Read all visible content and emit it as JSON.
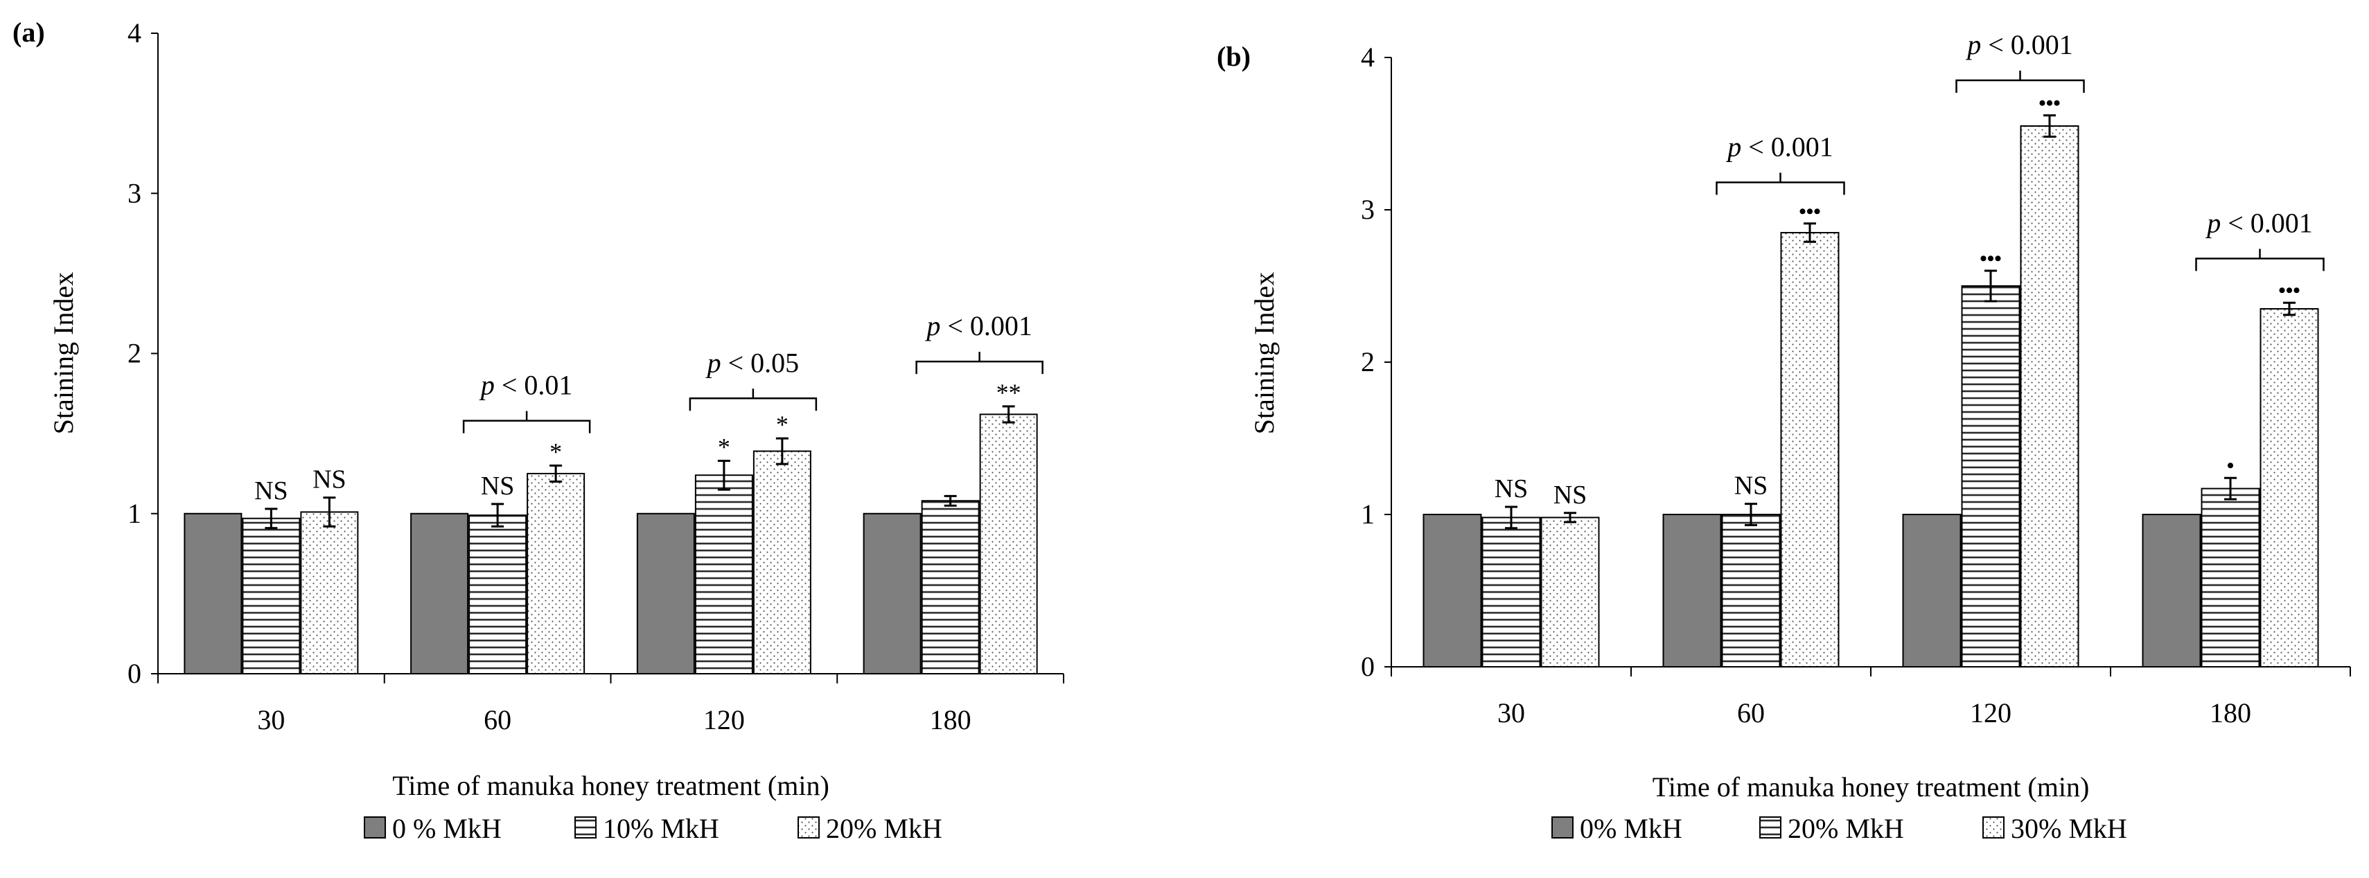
{
  "chart_data": [
    {
      "panel_label": "(a)",
      "type": "bar",
      "ylabel": "Staining Index",
      "xlabel": "Time of manuka honey treatment (min)",
      "ylim": [
        0,
        4
      ],
      "yticks": [
        "0",
        "1",
        "2",
        "3",
        "4"
      ],
      "categories": [
        "30",
        "60",
        "120",
        "180"
      ],
      "series": [
        {
          "name": "0 % MkH",
          "pattern": "solid",
          "values": [
            1.0,
            1.0,
            1.0,
            1.0
          ],
          "errors": [
            0,
            0,
            0,
            0
          ]
        },
        {
          "name": "10% MkH",
          "pattern": "hlines",
          "values": [
            0.97,
            0.99,
            1.24,
            1.08
          ],
          "errors": [
            0.06,
            0.07,
            0.09,
            0.03
          ]
        },
        {
          "name": "20% MkH",
          "pattern": "dots",
          "values": [
            1.01,
            1.25,
            1.39,
            1.62
          ],
          "errors": [
            0.09,
            0.05,
            0.08,
            0.05
          ]
        }
      ],
      "significance": [
        [
          "",
          "NS",
          "NS"
        ],
        [
          "",
          "NS",
          "*"
        ],
        [
          "",
          "*",
          "*"
        ],
        [
          "",
          "",
          "**"
        ]
      ],
      "brackets": [
        {
          "category": 1,
          "label": "p < 0.01",
          "level": 1.58
        },
        {
          "category": 2,
          "label": "p < 0.05",
          "level": 1.72
        },
        {
          "category": 3,
          "label": "p < 0.001",
          "level": 1.95
        }
      ]
    },
    {
      "panel_label": "(b)",
      "type": "bar",
      "ylabel": "Staining Index",
      "xlabel": "Time of  manuka honey treatment (min)",
      "ylim": [
        0,
        4
      ],
      "yticks": [
        "0",
        "1",
        "2",
        "3",
        "4"
      ],
      "categories": [
        "30",
        "60",
        "120",
        "180"
      ],
      "series": [
        {
          "name": "0% MkH",
          "pattern": "solid",
          "values": [
            1.0,
            1.0,
            1.0,
            1.0
          ],
          "errors": [
            0,
            0,
            0,
            0
          ]
        },
        {
          "name": "20% MkH",
          "pattern": "hlines",
          "values": [
            0.98,
            1.0,
            2.5,
            1.17
          ],
          "errors": [
            0.07,
            0.07,
            0.1,
            0.07
          ]
        },
        {
          "name": "30% MkH",
          "pattern": "dots",
          "values": [
            0.98,
            2.85,
            3.55,
            2.35
          ],
          "errors": [
            0.03,
            0.06,
            0.07,
            0.04
          ]
        }
      ],
      "significance": [
        [
          "",
          "NS",
          "NS"
        ],
        [
          "",
          "NS",
          "•••"
        ],
        [
          "",
          "•••",
          "•••"
        ],
        [
          "",
          "•",
          "•••"
        ]
      ],
      "brackets": [
        {
          "category": 1,
          "label": "p < 0.001",
          "level": 3.18
        },
        {
          "category": 2,
          "label": "p < 0.001",
          "level": 3.85
        },
        {
          "category": 3,
          "label": "p < 0.001",
          "level": 2.68
        }
      ]
    }
  ]
}
